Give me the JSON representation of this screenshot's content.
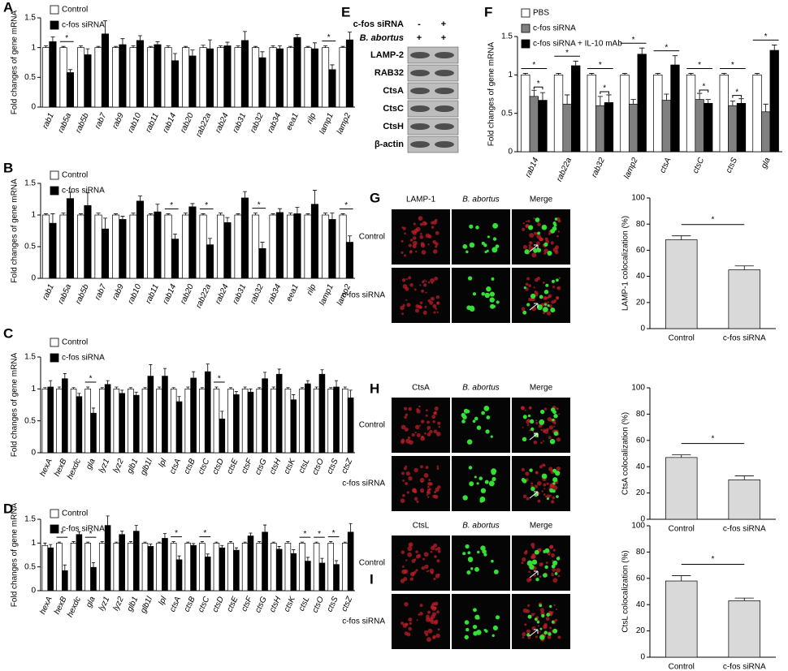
{
  "chart_data": [
    {
      "type": "bar",
      "label": "A",
      "ylabel": "Fold changes of gene mRNA",
      "categories": [
        "rab1",
        "rab5a",
        "rab5b",
        "rab7",
        "rab9",
        "rab10",
        "rab11",
        "rab14",
        "rab20",
        "rab22a",
        "rab24",
        "rab31",
        "rab32",
        "rab34",
        "eea1",
        "rilp",
        "lamp1",
        "lamp2"
      ],
      "series": [
        {
          "name": "Control",
          "color": "#ffffff",
          "values": [
            1,
            1,
            1,
            1,
            1,
            1,
            1,
            1,
            1,
            1,
            1,
            1,
            1,
            1,
            1,
            1,
            1,
            1
          ],
          "errors": [
            0.03,
            0.02,
            0.03,
            0.02,
            0.02,
            0.03,
            0.02,
            0.03,
            0.02,
            0.04,
            0.03,
            0.03,
            0.02,
            0.03,
            0.02,
            0.02,
            0.03,
            0.02
          ]
        },
        {
          "name": "c-fos siRNA",
          "color": "#000000",
          "values": [
            1.1,
            0.58,
            0.88,
            1.23,
            1.05,
            1.12,
            1.05,
            0.78,
            0.86,
            0.98,
            1.03,
            1.12,
            0.83,
            0.98,
            1.17,
            0.98,
            0.63,
            1.13
          ],
          "errors": [
            0.08,
            0.05,
            0.1,
            0.22,
            0.1,
            0.08,
            0.05,
            0.12,
            0.1,
            0.15,
            0.06,
            0.15,
            0.1,
            0.05,
            0.05,
            0.1,
            0.08,
            0.13
          ]
        }
      ],
      "sig_labels": [
        null,
        "*",
        null,
        null,
        null,
        null,
        null,
        null,
        null,
        null,
        null,
        null,
        null,
        null,
        null,
        null,
        "*",
        null
      ],
      "ylim": [
        0,
        1.5
      ],
      "yticks": [
        0,
        0.5,
        1,
        1.5
      ],
      "legend": "upper left"
    },
    {
      "type": "bar",
      "label": "B",
      "ylabel": "Fold changes of gene mRNA",
      "categories": [
        "rab1",
        "rab5a",
        "rab5b",
        "rab7",
        "rab9",
        "rab10",
        "rab11",
        "rab14",
        "rab20",
        "rab22a",
        "rab24",
        "rab31",
        "rab32",
        "rab34",
        "eea1",
        "rilp",
        "lamp1",
        "lamp2"
      ],
      "series": [
        {
          "name": "Control",
          "color": "#ffffff",
          "values": [
            1,
            1,
            1,
            1,
            1,
            1,
            1,
            1,
            1,
            1,
            1,
            1,
            1,
            1,
            1,
            1,
            1,
            1
          ],
          "errors": [
            0.02,
            0.03,
            0.02,
            0.03,
            0.02,
            0.03,
            0.02,
            0.02,
            0.03,
            0.02,
            0.03,
            0.02,
            0.03,
            0.02,
            0.03,
            0.02,
            0.03,
            0.02
          ]
        },
        {
          "name": "c-fos siRNA",
          "color": "#000000",
          "values": [
            0.87,
            1.26,
            1.15,
            0.78,
            0.93,
            1.22,
            1.05,
            0.62,
            1.13,
            0.53,
            0.88,
            1.27,
            0.47,
            1.04,
            1.02,
            1.17,
            0.93,
            0.57
          ],
          "errors": [
            0.15,
            0.1,
            0.2,
            0.17,
            0.05,
            0.08,
            0.12,
            0.08,
            0.05,
            0.1,
            0.08,
            0.1,
            0.1,
            0.06,
            0.1,
            0.22,
            0.1,
            0.1
          ]
        }
      ],
      "sig_labels": [
        null,
        null,
        null,
        null,
        null,
        null,
        null,
        "*",
        null,
        "*",
        null,
        null,
        "*",
        null,
        null,
        null,
        null,
        "*"
      ],
      "ylim": [
        0,
        1.5
      ],
      "yticks": [
        0,
        0.5,
        1,
        1.5
      ],
      "legend": "upper left"
    },
    {
      "type": "bar",
      "label": "C",
      "ylabel": "Fold changes of gene mRNA",
      "categories": [
        "hexA",
        "hexB",
        "hexdc",
        "gla",
        "lyz1",
        "lyz2",
        "glb1",
        "glb1l",
        "lpl",
        "ctsA",
        "ctsB",
        "ctsC",
        "ctsD",
        "ctsE",
        "ctsF",
        "ctsG",
        "ctsH",
        "ctsK",
        "ctsL",
        "ctsO",
        "ctsS",
        "ctsZ"
      ],
      "series": [
        {
          "name": "Control",
          "color": "#ffffff",
          "values": [
            1,
            1,
            1,
            1,
            1,
            1,
            1,
            1,
            1,
            1,
            1,
            1,
            1,
            1,
            1,
            1,
            1,
            1,
            1,
            1,
            1,
            1
          ],
          "errors": [
            0.02,
            0.03,
            0.02,
            0.03,
            0.02,
            0.03,
            0.02,
            0.02,
            0.03,
            0.02,
            0.03,
            0.02,
            0.03,
            0.02,
            0.03,
            0.02,
            0.03,
            0.02,
            0.02,
            0.03,
            0.02,
            0.03
          ]
        },
        {
          "name": "c-fos siRNA",
          "color": "#000000",
          "values": [
            1.03,
            1.16,
            0.88,
            0.62,
            1.07,
            0.93,
            0.9,
            1.2,
            1.2,
            0.8,
            1.17,
            1.27,
            0.53,
            0.91,
            0.95,
            1.16,
            1.23,
            0.83,
            1.08,
            1.23,
            1.03,
            0.86
          ],
          "errors": [
            0.1,
            0.08,
            0.05,
            0.08,
            0.06,
            0.05,
            0.05,
            0.18,
            0.12,
            0.08,
            0.1,
            0.12,
            0.12,
            0.05,
            0.05,
            0.1,
            0.08,
            0.08,
            0.05,
            0.07,
            0.1,
            0.12
          ]
        }
      ],
      "sig_labels": [
        null,
        null,
        null,
        "*",
        null,
        null,
        null,
        null,
        null,
        null,
        null,
        null,
        "*",
        null,
        null,
        null,
        null,
        null,
        null,
        null,
        null,
        null
      ],
      "ylim": [
        0,
        1.5
      ],
      "yticks": [
        0,
        0.5,
        1,
        1.5
      ],
      "legend": "upper left"
    },
    {
      "type": "bar",
      "label": "D",
      "ylabel": "Fold changes of gene mRNA",
      "categories": [
        "hexA",
        "hexB",
        "hexdc",
        "gla",
        "lyz1",
        "lyz2",
        "glb1",
        "glb1l",
        "lpl",
        "ctsA",
        "ctsB",
        "ctsC",
        "ctsD",
        "ctsE",
        "ctsF",
        "ctsG",
        "ctsH",
        "ctsK",
        "ctsL",
        "ctsO",
        "ctsS",
        "ctsZ"
      ],
      "series": [
        {
          "name": "Control",
          "color": "#ffffff",
          "values": [
            0.95,
            1,
            1,
            1,
            1,
            1,
            1,
            1,
            1,
            1,
            1,
            1,
            1,
            1,
            1,
            1,
            1,
            1,
            1,
            1,
            1,
            1
          ],
          "errors": [
            0.05,
            0.02,
            0.03,
            0.02,
            0.03,
            0.02,
            0.03,
            0.02,
            0.02,
            0.03,
            0.02,
            0.03,
            0.02,
            0.03,
            0.02,
            0.03,
            0.02,
            0.03,
            0.02,
            0.02,
            0.03,
            0.02
          ]
        },
        {
          "name": "c-fos siRNA",
          "color": "#000000",
          "values": [
            0.9,
            0.42,
            1.18,
            0.49,
            1.37,
            1.18,
            1.25,
            0.93,
            1.1,
            0.65,
            0.95,
            0.71,
            0.9,
            0.85,
            1.15,
            1.23,
            0.87,
            0.78,
            0.62,
            0.58,
            0.55,
            1.23
          ],
          "errors": [
            0.07,
            0.12,
            0.06,
            0.1,
            0.2,
            0.07,
            0.12,
            0.05,
            0.1,
            0.08,
            0.04,
            0.06,
            0.05,
            0.05,
            0.06,
            0.15,
            0.06,
            0.08,
            0.08,
            0.1,
            0.08,
            0.18
          ]
        }
      ],
      "sig_labels": [
        null,
        "*",
        null,
        "*",
        null,
        null,
        null,
        null,
        null,
        "*",
        null,
        "*",
        null,
        null,
        null,
        null,
        null,
        null,
        "*",
        "*",
        "*",
        null
      ],
      "ylim": [
        0,
        1.5
      ],
      "yticks": [
        0,
        0.5,
        1,
        1.5
      ],
      "legend": "upper left"
    },
    {
      "type": "bar",
      "label": "F",
      "ylabel": "Fold changes of gene mRNA",
      "categories": [
        "rab14",
        "rab22a",
        "rab32",
        "lamp2",
        "ctsA",
        "ctsC",
        "ctsS",
        "gla"
      ],
      "series": [
        {
          "name": "PBS",
          "color": "#ffffff",
          "values": [
            1,
            1,
            1,
            1,
            1,
            1,
            1,
            1
          ],
          "errors": [
            0.02,
            0.02,
            0.02,
            0.02,
            0.02,
            0.02,
            0.02,
            0.02
          ]
        },
        {
          "name": "c-fos siRNA",
          "color": "#808080",
          "values": [
            0.72,
            0.62,
            0.6,
            0.62,
            0.67,
            0.68,
            0.6,
            0.52
          ],
          "errors": [
            0.08,
            0.12,
            0.12,
            0.06,
            0.08,
            0.08,
            0.06,
            0.1
          ]
        },
        {
          "name": "c-fos siRNA + IL-10 mAb",
          "color": "#000000",
          "values": [
            0.67,
            1.12,
            0.64,
            1.27,
            1.13,
            0.63,
            0.63,
            1.32
          ],
          "errors": [
            0.1,
            0.06,
            0.1,
            0.08,
            0.12,
            0.05,
            0.06,
            0.07
          ]
        }
      ],
      "sig_labels": [
        "*",
        "*",
        "*",
        "*",
        "*",
        "*",
        "*",
        "*"
      ],
      "sig_labels_inner": [
        "*",
        null,
        "*",
        null,
        null,
        "*",
        "*",
        null
      ],
      "ylim": [
        0,
        1.5
      ],
      "yticks": [
        0,
        0.5,
        1,
        1.5
      ],
      "legend": "upper left"
    },
    {
      "type": "bar",
      "label": "G",
      "ylabel": "LAMP-1 colocalization (%)",
      "categories": [
        "Control",
        "c-fos siRNA"
      ],
      "series": [
        {
          "name": "LAMP-1 colocalization",
          "color": "#d9d9d9",
          "values": [
            68,
            45
          ],
          "errors": [
            3,
            3
          ]
        }
      ],
      "sig_label": "*",
      "ylim": [
        0,
        100
      ],
      "yticks": [
        0,
        20,
        40,
        60,
        80,
        100
      ]
    },
    {
      "type": "bar",
      "label": "H",
      "ylabel": "CtsA colocalization (%)",
      "categories": [
        "Control",
        "c-fos siRNA"
      ],
      "series": [
        {
          "name": "CtsA colocalization",
          "color": "#d9d9d9",
          "values": [
            47,
            30
          ],
          "errors": [
            2,
            3
          ]
        }
      ],
      "sig_label": "*",
      "ylim": [
        0,
        100
      ],
      "yticks": [
        0,
        20,
        40,
        60,
        80,
        100
      ]
    },
    {
      "type": "bar",
      "label": "I",
      "ylabel": "CtsL colocalization (%)",
      "categories": [
        "Control",
        "c-fos siRNA"
      ],
      "series": [
        {
          "name": "CtsL colocalization",
          "color": "#d9d9d9",
          "values": [
            58,
            43
          ],
          "errors": [
            4,
            2
          ]
        }
      ],
      "sig_label": "*",
      "ylim": [
        0,
        100
      ],
      "yticks": [
        0,
        20,
        40,
        60,
        80,
        100
      ]
    }
  ],
  "blot": {
    "label": "E",
    "conditions": [
      {
        "name": "c-fos siRNA",
        "values": [
          "-",
          "+"
        ]
      },
      {
        "name": "B. abortus",
        "values": [
          "+",
          "+"
        ]
      }
    ],
    "bands": [
      "LAMP-2",
      "RAB32",
      "CtsA",
      "CtsC",
      "CtsH",
      "β-actin"
    ]
  },
  "images": [
    {
      "label": "G",
      "columns": [
        "LAMP-1",
        "B. abortus",
        "Merge"
      ],
      "rows": [
        "Control",
        "c-fos siRNA"
      ]
    },
    {
      "label": "H",
      "columns": [
        "CtsA",
        "B. abortus",
        "Merge"
      ],
      "rows": [
        "Control",
        "c-fos siRNA"
      ]
    },
    {
      "label": "I",
      "columns": [
        "CtsL",
        "B. abortus",
        "Merge"
      ],
      "rows": [
        "Control",
        "c-fos siRNA"
      ]
    }
  ]
}
